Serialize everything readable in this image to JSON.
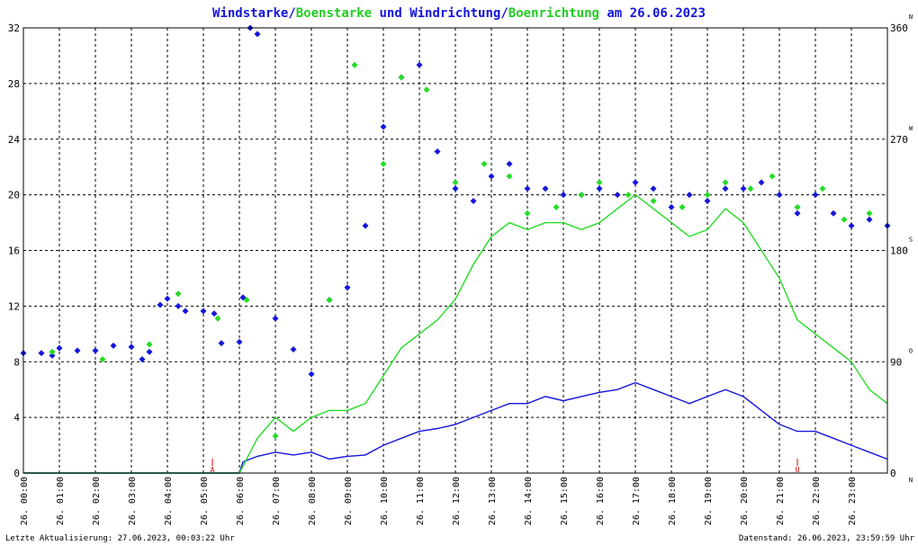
{
  "title": {
    "parts": [
      {
        "text": "Windstarke",
        "color": "#1515dd"
      },
      {
        "text": "/",
        "color": "#1515dd"
      },
      {
        "text": "Boenstarke",
        "color": "#22cc22"
      },
      {
        "text": " und ",
        "color": "#1515dd"
      },
      {
        "text": "Windrichtung",
        "color": "#1515dd"
      },
      {
        "text": "/",
        "color": "#1515dd"
      },
      {
        "text": "Boenrichtung",
        "color": "#22cc22"
      },
      {
        "text": " am 26.06.2023",
        "color": "#1515dd"
      }
    ]
  },
  "footer": {
    "left": "Letzte Aktualisierung: 27.06.2023, 00:03:22 Uhr",
    "right": "Datenstand: 26.06.2023, 23:59:59 Uhr"
  },
  "colors": {
    "wind": "#1515dd",
    "gust": "#22dd22",
    "marker": "#dd0000",
    "grid": "#000000"
  },
  "chart_data": {
    "type": "line",
    "title": "Windstarke/Boenstarke und Windrichtung/Boenrichtung am 26.06.2023",
    "xlabel": "",
    "ylabel": "",
    "x_ticks": [
      "26. 00:00",
      "26. 01:00",
      "26. 02:00",
      "26. 03:00",
      "26. 04:00",
      "26. 05:00",
      "26. 06:00",
      "26. 07:00",
      "26. 08:00",
      "26. 09:00",
      "26. 10:00",
      "26. 11:00",
      "26. 12:00",
      "26. 13:00",
      "26. 14:00",
      "26. 15:00",
      "26. 16:00",
      "26. 17:00",
      "26. 18:00",
      "26. 19:00",
      "26. 20:00",
      "26. 21:00",
      "26. 22:00",
      "26. 23:00"
    ],
    "x_range_hours": [
      0,
      24
    ],
    "ylim_left": [
      0,
      32
    ],
    "y_ticks_left": [
      0,
      4,
      8,
      12,
      16,
      20,
      24,
      28,
      32
    ],
    "ylim_right": [
      0,
      360
    ],
    "y_ticks_right": [
      0,
      90,
      180,
      270,
      360
    ],
    "right_axis_compass": [
      "N",
      "O",
      "S",
      "W",
      "N"
    ],
    "grid": true,
    "markers": [
      {
        "label": "A",
        "hour": 5.25
      },
      {
        "label": "U",
        "hour": 21.5
      }
    ],
    "series": [
      {
        "name": "Windstarke",
        "axis": "left",
        "color": "#1515dd",
        "kind": "line",
        "points": [
          [
            0,
            0
          ],
          [
            6,
            0
          ],
          [
            6.1,
            0.8
          ],
          [
            6.5,
            1.2
          ],
          [
            7,
            1.5
          ],
          [
            7.5,
            1.3
          ],
          [
            8,
            1.5
          ],
          [
            8.5,
            1.0
          ],
          [
            9,
            1.2
          ],
          [
            9.5,
            1.3
          ],
          [
            10,
            2.0
          ],
          [
            10.5,
            2.5
          ],
          [
            11,
            3.0
          ],
          [
            11.5,
            3.2
          ],
          [
            12,
            3.5
          ],
          [
            12.5,
            4.0
          ],
          [
            13,
            4.5
          ],
          [
            13.5,
            5.0
          ],
          [
            14,
            5.0
          ],
          [
            14.5,
            5.5
          ],
          [
            15,
            5.2
          ],
          [
            15.5,
            5.5
          ],
          [
            16,
            5.8
          ],
          [
            16.5,
            6.0
          ],
          [
            17,
            6.5
          ],
          [
            17.5,
            6.0
          ],
          [
            18,
            5.5
          ],
          [
            18.5,
            5.0
          ],
          [
            19,
            5.5
          ],
          [
            19.5,
            6.0
          ],
          [
            20,
            5.5
          ],
          [
            20.5,
            4.5
          ],
          [
            21,
            3.5
          ],
          [
            21.5,
            3.0
          ],
          [
            22,
            3.0
          ],
          [
            22.5,
            2.5
          ],
          [
            23,
            2.0
          ],
          [
            23.5,
            1.5
          ],
          [
            24,
            1.0
          ]
        ]
      },
      {
        "name": "Boenstarke",
        "axis": "left",
        "color": "#22dd22",
        "kind": "line",
        "points": [
          [
            0,
            0
          ],
          [
            6,
            0
          ],
          [
            6.5,
            2.5
          ],
          [
            7,
            4.0
          ],
          [
            7.5,
            3.0
          ],
          [
            8,
            4.0
          ],
          [
            8.5,
            4.5
          ],
          [
            9,
            4.5
          ],
          [
            9.5,
            5.0
          ],
          [
            10,
            7.0
          ],
          [
            10.5,
            9.0
          ],
          [
            11,
            10.0
          ],
          [
            11.5,
            11.0
          ],
          [
            12,
            12.5
          ],
          [
            12.5,
            15.0
          ],
          [
            13,
            17.0
          ],
          [
            13.5,
            18.0
          ],
          [
            14,
            17.5
          ],
          [
            14.5,
            18.0
          ],
          [
            15,
            18.0
          ],
          [
            15.5,
            17.5
          ],
          [
            16,
            18.0
          ],
          [
            16.5,
            19.0
          ],
          [
            17,
            20.0
          ],
          [
            17.5,
            19.0
          ],
          [
            18,
            18.0
          ],
          [
            18.5,
            17.0
          ],
          [
            19,
            17.5
          ],
          [
            19.5,
            19.0
          ],
          [
            20,
            18.0
          ],
          [
            20.5,
            16.0
          ],
          [
            21,
            14.0
          ],
          [
            21.5,
            11.0
          ],
          [
            22,
            10.0
          ],
          [
            22.5,
            9.0
          ],
          [
            23,
            8.0
          ],
          [
            23.5,
            6.0
          ],
          [
            24,
            5.0
          ]
        ]
      },
      {
        "name": "Windrichtung",
        "axis": "right",
        "color": "#1515dd",
        "kind": "scatter",
        "points": [
          [
            0,
            97
          ],
          [
            0.5,
            97
          ],
          [
            0.8,
            95
          ],
          [
            1,
            101
          ],
          [
            1.5,
            99
          ],
          [
            2,
            99
          ],
          [
            2.5,
            103
          ],
          [
            3,
            102
          ],
          [
            3.3,
            92
          ],
          [
            3.5,
            98
          ],
          [
            3.8,
            136
          ],
          [
            4,
            141
          ],
          [
            4.3,
            135
          ],
          [
            4.5,
            131
          ],
          [
            5,
            131
          ],
          [
            5.3,
            129
          ],
          [
            5.5,
            105
          ],
          [
            6,
            106
          ],
          [
            6.1,
            142
          ],
          [
            6.3,
            360
          ],
          [
            6.5,
            355
          ],
          [
            7,
            125
          ],
          [
            7.5,
            100
          ],
          [
            8,
            80
          ],
          [
            8.5,
            140
          ],
          [
            9,
            150
          ],
          [
            9.5,
            200
          ],
          [
            10,
            280
          ],
          [
            10.5,
            320
          ],
          [
            11,
            330
          ],
          [
            11.5,
            260
          ],
          [
            12,
            230
          ],
          [
            12.5,
            220
          ],
          [
            13,
            240
          ],
          [
            13.5,
            250
          ],
          [
            14,
            230
          ],
          [
            14.5,
            230
          ],
          [
            15,
            225
          ],
          [
            15.5,
            225
          ],
          [
            16,
            230
          ],
          [
            16.5,
            225
          ],
          [
            17,
            235
          ],
          [
            17.5,
            230
          ],
          [
            18,
            215
          ],
          [
            18.5,
            225
          ],
          [
            19,
            220
          ],
          [
            19.5,
            230
          ],
          [
            20,
            230
          ],
          [
            20.5,
            235
          ],
          [
            21,
            225
          ],
          [
            21.5,
            210
          ],
          [
            22,
            225
          ],
          [
            22.5,
            210
          ],
          [
            23,
            200
          ],
          [
            23.5,
            205
          ],
          [
            24,
            200
          ]
        ]
      },
      {
        "name": "Boenrichtung",
        "axis": "right",
        "color": "#22dd22",
        "kind": "scatter",
        "points": [
          [
            0.8,
            98
          ],
          [
            2.2,
            92
          ],
          [
            3.5,
            104
          ],
          [
            4.3,
            145
          ],
          [
            5.4,
            125
          ],
          [
            6.2,
            140
          ],
          [
            7,
            30
          ],
          [
            8.5,
            140
          ],
          [
            9.2,
            330
          ],
          [
            10,
            250
          ],
          [
            10.5,
            320
          ],
          [
            11.2,
            310
          ],
          [
            12,
            235
          ],
          [
            12.8,
            250
          ],
          [
            13.5,
            240
          ],
          [
            14,
            210
          ],
          [
            14.8,
            215
          ],
          [
            15.5,
            225
          ],
          [
            16,
            235
          ],
          [
            16.8,
            225
          ],
          [
            17.5,
            220
          ],
          [
            18.3,
            215
          ],
          [
            19,
            225
          ],
          [
            19.5,
            235
          ],
          [
            20.2,
            230
          ],
          [
            20.8,
            240
          ],
          [
            21.5,
            215
          ],
          [
            22.2,
            230
          ],
          [
            22.8,
            205
          ],
          [
            23.5,
            210
          ]
        ]
      }
    ]
  }
}
